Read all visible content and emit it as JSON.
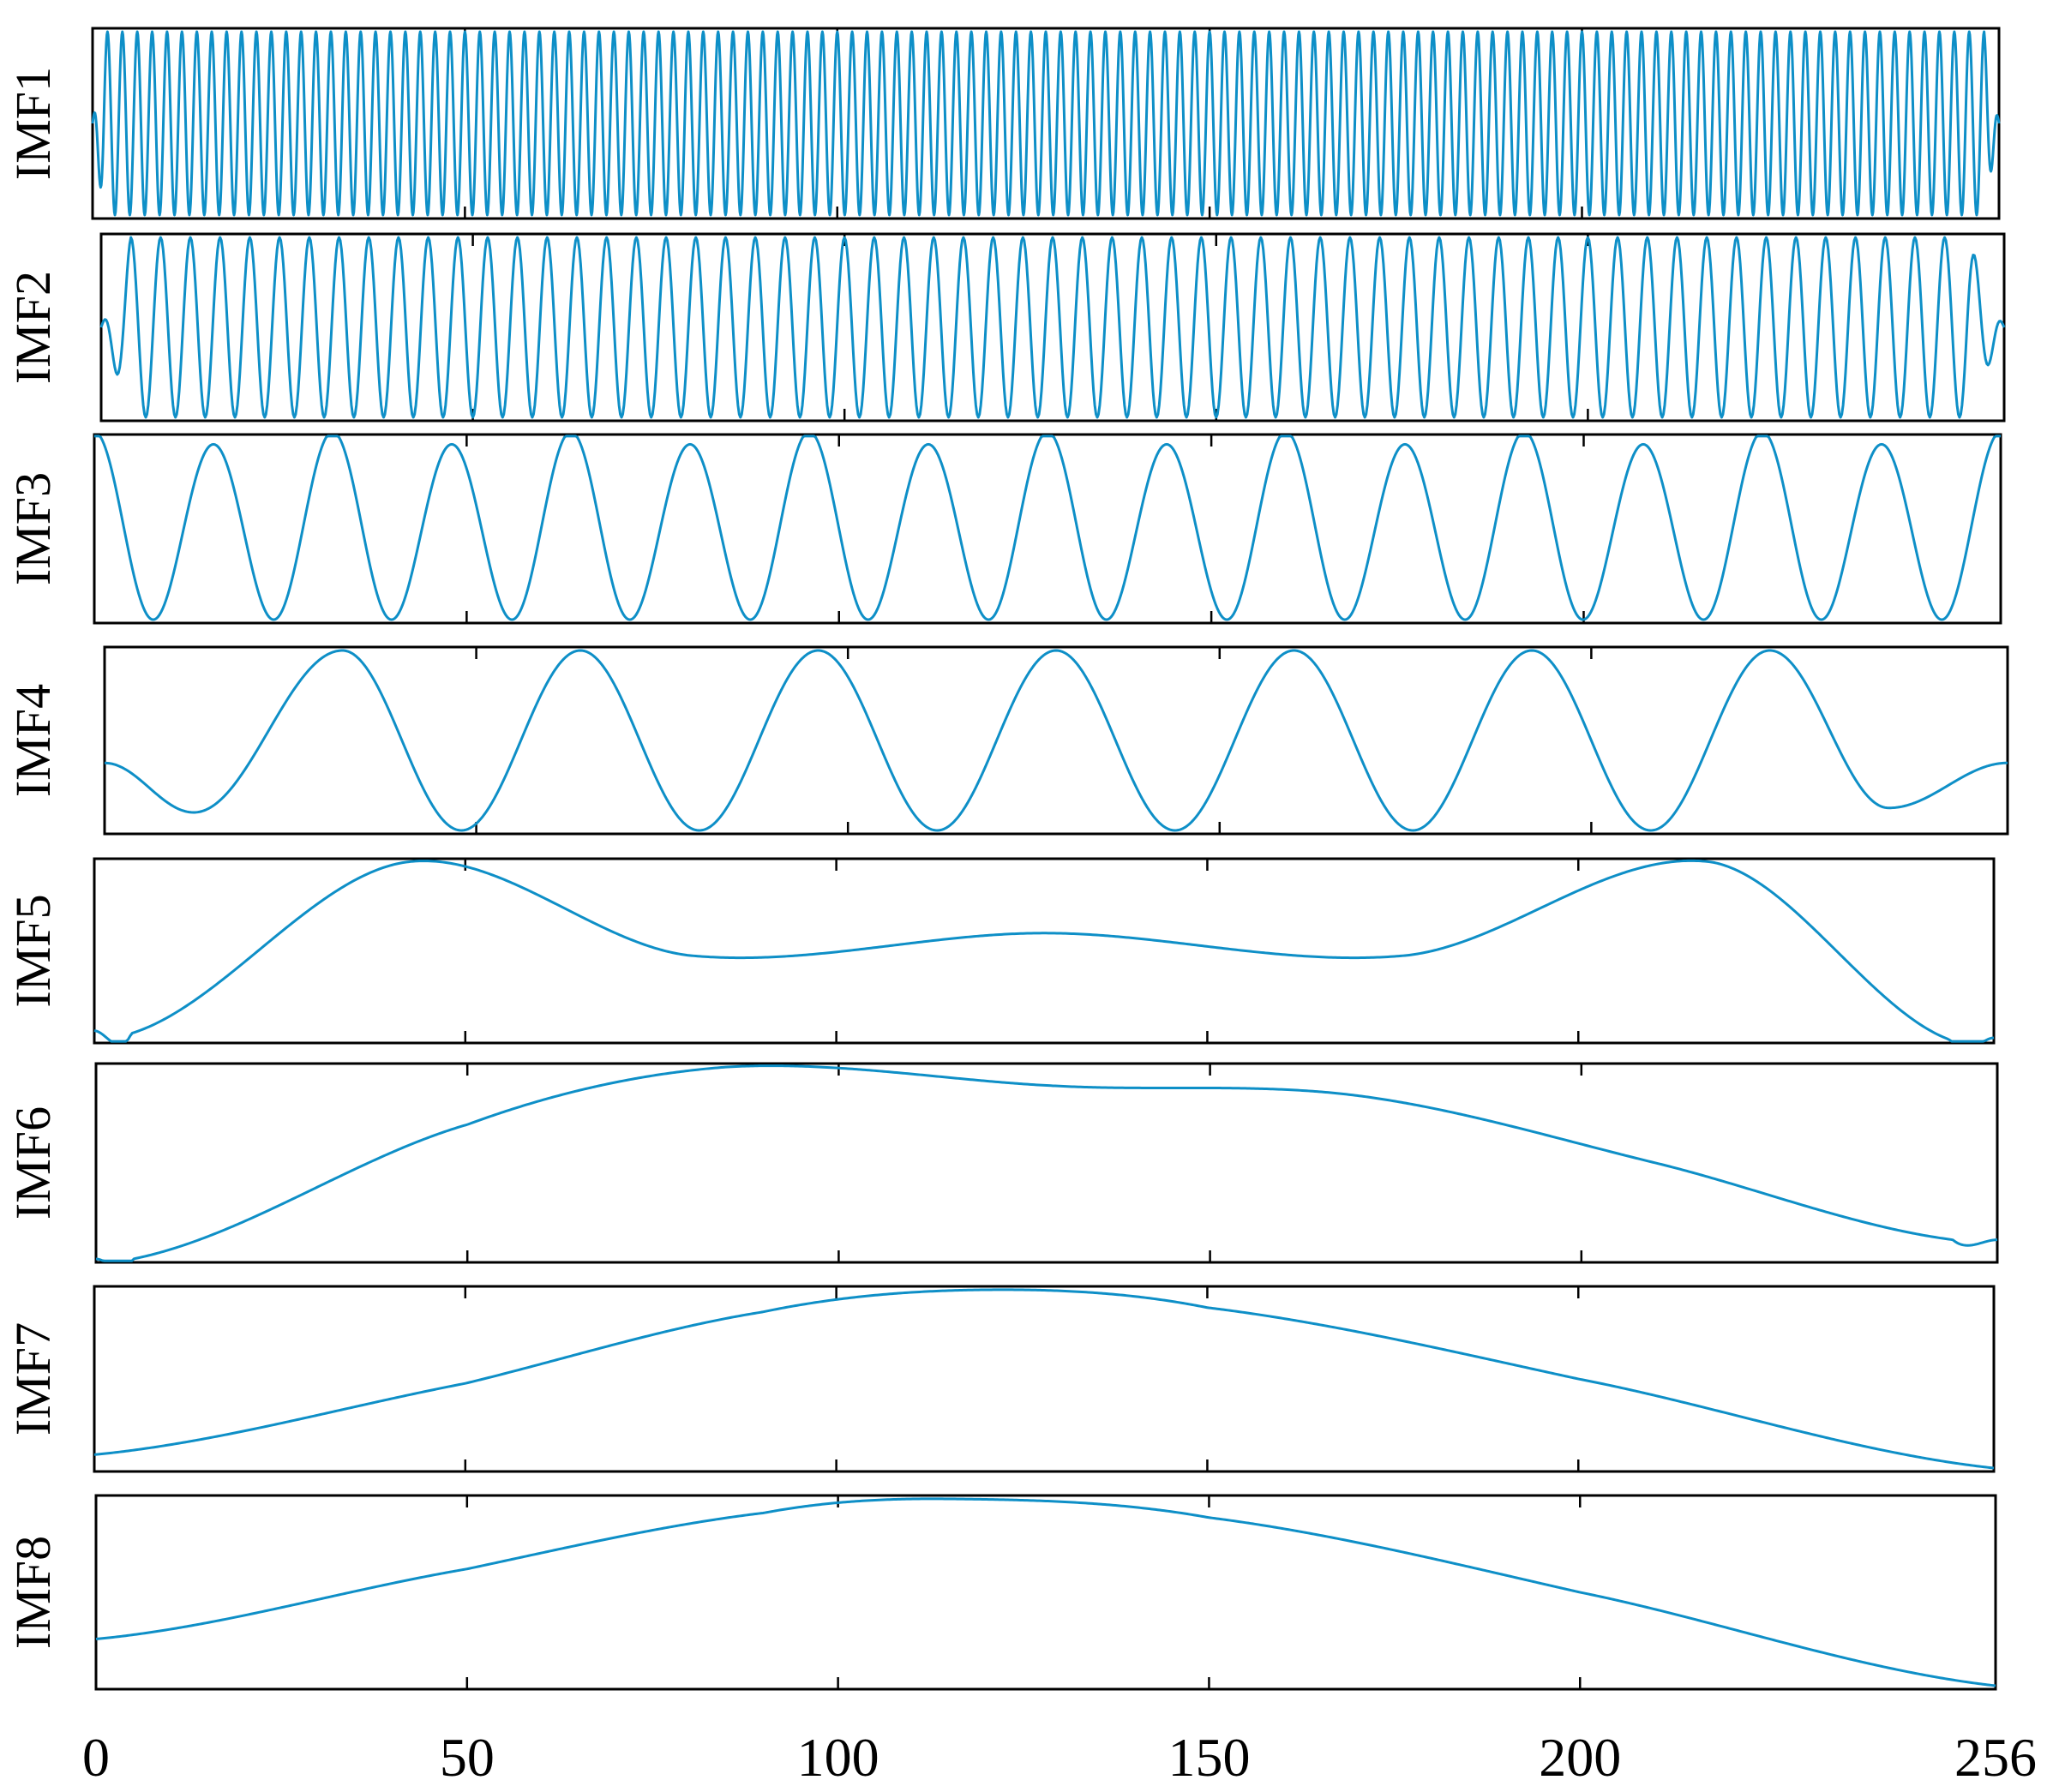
{
  "chart_data": {
    "type": "line",
    "layout": "stacked-subplots",
    "line_color": "#0e8fc7",
    "grid": false,
    "legend": "none",
    "x_axis": {
      "xlim": [
        0,
        256
      ],
      "ticks": [
        0,
        50,
        100,
        150,
        200,
        256
      ],
      "tick_labels": [
        "0",
        "50",
        "100",
        "150",
        "200",
        "256"
      ],
      "shown_on": "bottom-subplot"
    },
    "subplots": [
      {
        "ylabel": "IMF1",
        "pattern": "oscillation",
        "cycles": 128,
        "amplitude": 1.0,
        "onset_samples": 1.5,
        "decay_samples": 2
      },
      {
        "ylabel": "IMF2",
        "pattern": "oscillation",
        "cycles": 64,
        "amplitude": 1.0,
        "onset_samples": 4,
        "decay_samples": 5
      },
      {
        "ylabel": "IMF3",
        "pattern": "oscillation",
        "cycles": 16,
        "amplitude": 1.0,
        "alternate_amplitude": 0.07
      },
      {
        "ylabel": "IMF4",
        "pattern": "oscillation",
        "x": [
          0,
          12,
          32,
          48,
          64,
          80,
          96,
          112,
          128,
          144,
          160,
          176,
          192,
          208,
          224,
          240,
          256
        ],
        "y": [
          -0.25,
          -0.8,
          1.0,
          -1.0,
          1.0,
          -1.0,
          1.0,
          -1.0,
          1.0,
          -1.0,
          1.0,
          -1.0,
          1.0,
          -1.0,
          1.0,
          -0.75,
          -0.25
        ]
      },
      {
        "ylabel": "IMF5",
        "pattern": "trend",
        "x": [
          0,
          5,
          42,
          80,
          128,
          177,
          218,
          250,
          256
        ],
        "y": [
          -0.9,
          -0.93,
          1.0,
          -0.05,
          0.2,
          -0.05,
          1.0,
          -1.0,
          -0.98
        ]
      },
      {
        "ylabel": "IMF6",
        "pattern": "trend",
        "x": [
          0,
          5,
          50,
          85,
          130,
          170,
          210,
          250,
          256
        ],
        "y": [
          -1.0,
          -1.0,
          0.4,
          1.0,
          0.8,
          0.7,
          0.0,
          -0.8,
          -0.8
        ]
      },
      {
        "ylabel": "IMF7",
        "pattern": "trend",
        "x": [
          0,
          50,
          90,
          120,
          150,
          200,
          256
        ],
        "y": [
          -0.85,
          -0.05,
          0.75,
          1.0,
          0.8,
          0.0,
          -1.0
        ]
      },
      {
        "ylabel": "IMF8",
        "pattern": "trend",
        "x": [
          0,
          50,
          90,
          115,
          150,
          200,
          256
        ],
        "y": [
          -0.5,
          0.25,
          0.85,
          1.0,
          0.8,
          0.0,
          -1.0
        ]
      }
    ]
  }
}
